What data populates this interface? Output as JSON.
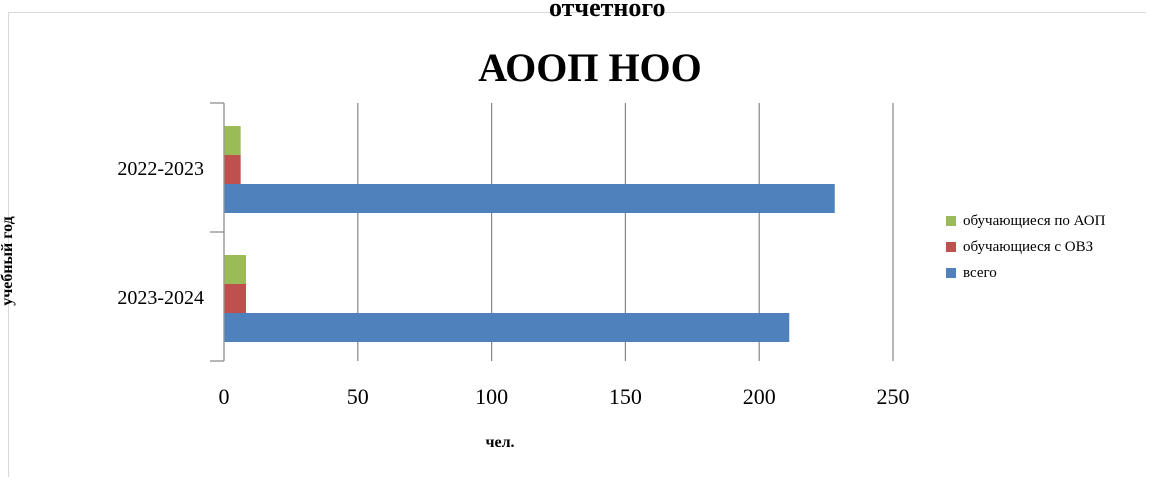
{
  "header": {
    "cut_text": "отчетного"
  },
  "chart_data": {
    "type": "bar",
    "orientation": "horizontal",
    "title": "АООП НОО",
    "xlabel": "чел.",
    "ylabel": "учебный год",
    "categories": [
      "2022-2023",
      "2023-2024"
    ],
    "series": [
      {
        "name": "обучающиеся по АОП",
        "color": "#9BBB59",
        "values": [
          6,
          8
        ]
      },
      {
        "name": "обучающиеся с ОВЗ",
        "color": "#C0504D",
        "values": [
          6,
          8
        ]
      },
      {
        "name": "всего",
        "color": "#4F81BD",
        "values": [
          228,
          211
        ]
      }
    ],
    "xlim": [
      0,
      250
    ],
    "xticks": [
      "0",
      "50",
      "100",
      "150",
      "200",
      "250"
    ],
    "grid": true,
    "legend_position": "right"
  }
}
